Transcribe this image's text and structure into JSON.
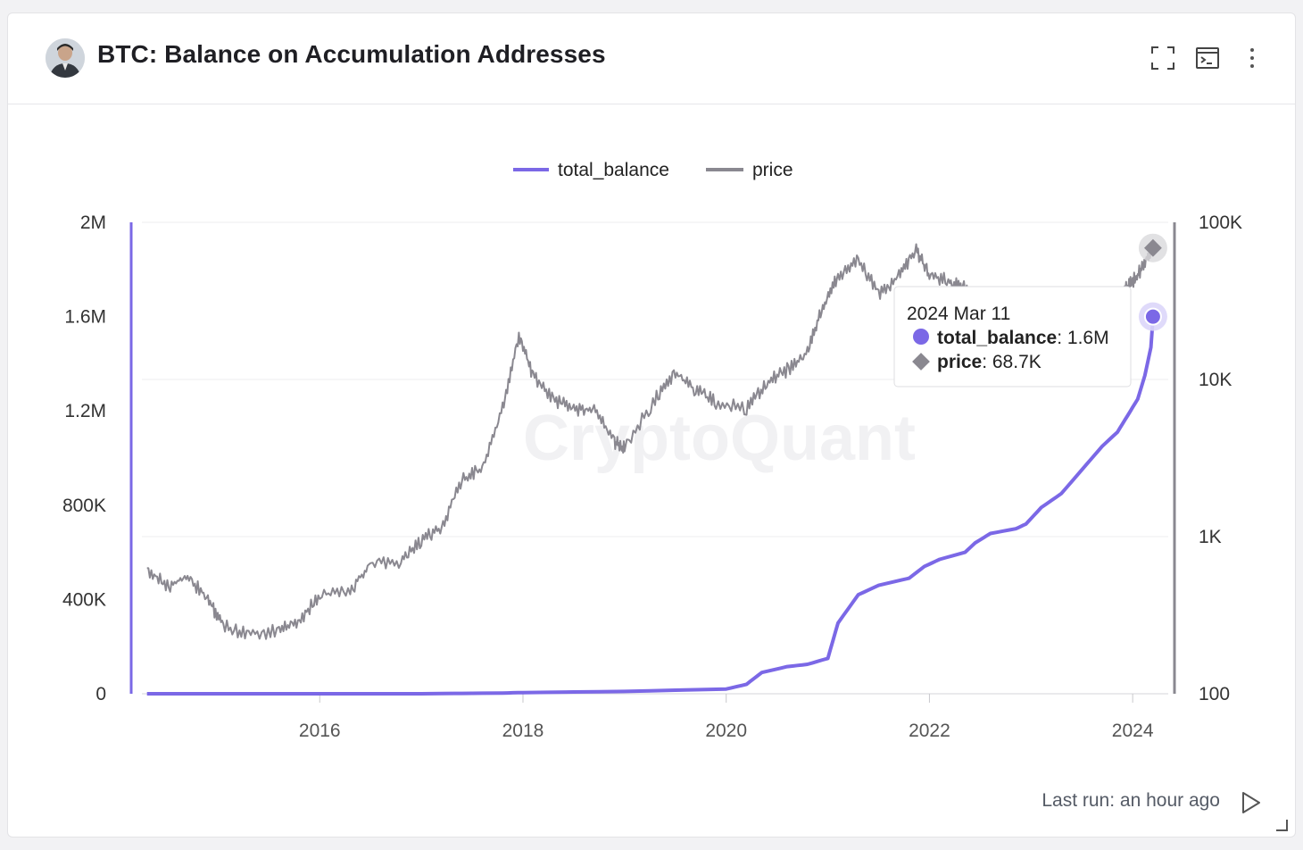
{
  "header": {
    "title": "BTC: Balance on Accumulation Addresses",
    "icons": [
      "fullscreen-icon",
      "terminal-icon",
      "more-vertical-icon"
    ]
  },
  "watermark": "CryptoQuant",
  "footer": {
    "last_run": "Last run: an hour ago"
  },
  "tooltip": {
    "date": "2024 Mar 11",
    "rows": [
      {
        "name": "total_balance",
        "value": ": 1.6M"
      },
      {
        "name": "price",
        "value": ": 68.7K"
      }
    ]
  },
  "chart_data": {
    "type": "line",
    "legend_position": "top-center",
    "grid": true,
    "colors": {
      "total_balance": "#7b68e6",
      "price": "#8a8890"
    },
    "x_ticks": [
      "2016",
      "2018",
      "2020",
      "2022",
      "2024"
    ],
    "x_range": [
      2014.25,
      2024.35
    ],
    "y_left": {
      "ticks": [
        "0",
        "400K",
        "800K",
        "1.2M",
        "1.6M",
        "2M"
      ],
      "range": [
        0,
        2000000
      ],
      "scale": "linear"
    },
    "y_right": {
      "ticks": [
        "100",
        "1K",
        "10K",
        "100K"
      ],
      "range": [
        100,
        100000
      ],
      "scale": "log"
    },
    "series": [
      {
        "name": "total_balance",
        "axis": "left",
        "x": [
          2014.3,
          2015,
          2016,
          2017,
          2017.8,
          2018,
          2019,
          2020,
          2020.2,
          2020.35,
          2020.6,
          2020.8,
          2021.0,
          2021.1,
          2021.3,
          2021.5,
          2021.8,
          2021.95,
          2022.1,
          2022.35,
          2022.45,
          2022.6,
          2022.85,
          2022.95,
          2023.1,
          2023.3,
          2023.5,
          2023.7,
          2023.85,
          2023.95,
          2024.05,
          2024.12,
          2024.18,
          2024.2
        ],
        "y": [
          0,
          0,
          0,
          0,
          3000,
          5000,
          10000,
          20000,
          40000,
          90000,
          115000,
          125000,
          150000,
          300000,
          420000,
          460000,
          490000,
          540000,
          570000,
          600000,
          640000,
          680000,
          700000,
          720000,
          790000,
          850000,
          950000,
          1050000,
          1110000,
          1180000,
          1250000,
          1350000,
          1470000,
          1600000
        ]
      },
      {
        "name": "price",
        "axis": "right",
        "x": [
          2014.3,
          2014.5,
          2014.7,
          2014.9,
          2015.05,
          2015.3,
          2015.6,
          2015.8,
          2016.0,
          2016.3,
          2016.5,
          2016.8,
          2017.0,
          2017.2,
          2017.4,
          2017.6,
          2017.8,
          2017.96,
          2018.1,
          2018.3,
          2018.5,
          2018.7,
          2018.9,
          2019.0,
          2019.3,
          2019.5,
          2019.7,
          2019.9,
          2020.2,
          2020.4,
          2020.6,
          2020.8,
          2020.95,
          2021.1,
          2021.3,
          2021.5,
          2021.7,
          2021.87,
          2022.0,
          2022.2,
          2022.35,
          2022.6,
          2022.9,
          2023.1,
          2023.3,
          2023.6,
          2023.9,
          2024.0,
          2024.1,
          2024.2
        ],
        "y": [
          630,
          480,
          560,
          400,
          270,
          240,
          250,
          290,
          430,
          450,
          680,
          690,
          950,
          1150,
          2300,
          2700,
          6500,
          19000,
          10500,
          7500,
          6400,
          6500,
          4000,
          3700,
          7500,
          11000,
          8500,
          7200,
          6500,
          9500,
          11500,
          15000,
          29000,
          45000,
          58000,
          35000,
          45000,
          66000,
          46000,
          42000,
          38000,
          22000,
          17000,
          21000,
          28000,
          26000,
          37000,
          42000,
          52000,
          68700
        ]
      }
    ]
  }
}
